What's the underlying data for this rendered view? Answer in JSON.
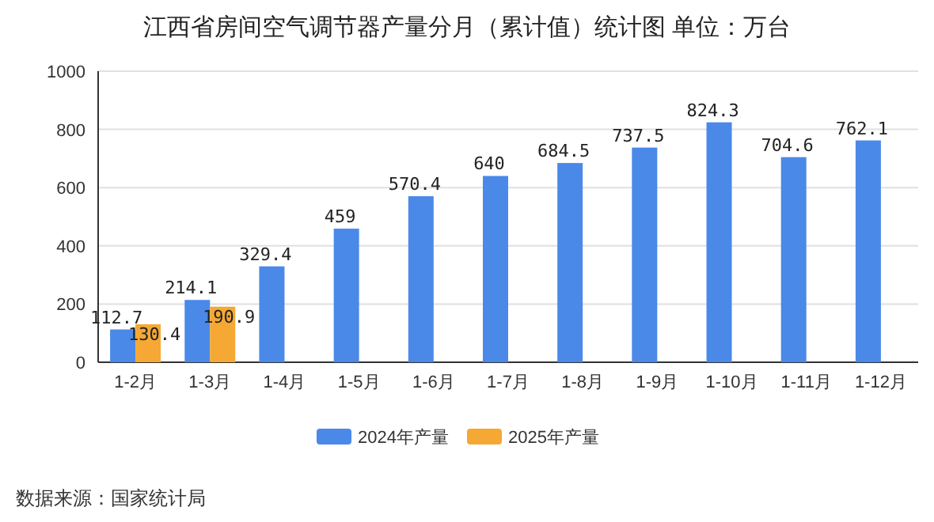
{
  "chart_data": {
    "type": "bar",
    "title": "江西省房间空气调节器产量分月（累计值）统计图 单位：万台",
    "categories": [
      "1-2月",
      "1-3月",
      "1-4月",
      "1-5月",
      "1-6月",
      "1-7月",
      "1-8月",
      "1-9月",
      "1-10月",
      "1-11月",
      "1-12月"
    ],
    "series": [
      {
        "name": "2024年产量",
        "color": "#4a89e8",
        "values": [
          112.7,
          214.1,
          329.4,
          459,
          570.4,
          640,
          684.5,
          737.5,
          824.3,
          704.6,
          762.1
        ]
      },
      {
        "name": "2025年产量",
        "color": "#f5a833",
        "values": [
          130.4,
          190.9,
          null,
          null,
          null,
          null,
          null,
          null,
          null,
          null,
          null
        ]
      }
    ],
    "ylim": [
      0,
      1000
    ],
    "yticks": [
      0,
      200,
      400,
      600,
      800,
      1000
    ],
    "grid": "y",
    "legend": "bottom",
    "data_labels": true,
    "annotations": [
      "数据来源：国家统计局"
    ]
  }
}
